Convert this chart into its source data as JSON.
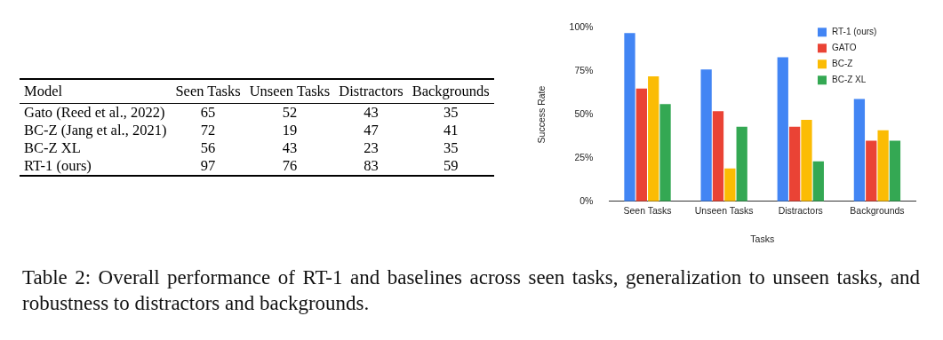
{
  "chart_data": [
    {
      "type": "other",
      "ylabel": "Model",
      "categories": [
        "Seen Tasks",
        "Unseen Tasks",
        "Distractors",
        "Backgrounds"
      ],
      "data_labels": true,
      "series": [
        {
          "name": "Gato (Reed et al., 2022)",
          "color": "#000000",
          "values": [
            65,
            52,
            43,
            35
          ]
        },
        {
          "name": "BC-Z (Jang et al., 2021)",
          "color": "#000000",
          "values": [
            72,
            19,
            47,
            41
          ]
        },
        {
          "name": "BC-Z XL",
          "color": "#000000",
          "values": [
            56,
            43,
            23,
            35
          ]
        },
        {
          "name": "RT-1 (ours)",
          "color": "#000000",
          "values": [
            97,
            76,
            83,
            59
          ]
        }
      ],
      "annotations": [
        "Table 2: Overall performance of RT-1 and baselines across seen tasks, generalization to unseen tasks, and robustness to distractors and backgrounds."
      ]
    },
    {
      "type": "bar",
      "xlabel": "Tasks",
      "ylabel": "Success Rate",
      "categories": [
        "Seen Tasks",
        "Unseen Tasks",
        "Distractors",
        "Backgrounds"
      ],
      "ylim": [
        0,
        100
      ],
      "yticks": [
        {
          "value": 0,
          "label": "0%"
        },
        {
          "value": 25,
          "label": "25%"
        },
        {
          "value": 50,
          "label": "50%"
        },
        {
          "value": 75,
          "label": "75%"
        },
        {
          "value": 100,
          "label": "100%"
        }
      ],
      "grid": false,
      "legend": "top right",
      "series": [
        {
          "name": "RT-1 (ours)",
          "color": "#4285f4",
          "values": [
            97,
            76,
            83,
            59
          ]
        },
        {
          "name": "GATO",
          "color": "#ea4335",
          "values": [
            65,
            52,
            43,
            35
          ]
        },
        {
          "name": "BC-Z",
          "color": "#fbbc04",
          "values": [
            72,
            19,
            47,
            41
          ]
        },
        {
          "name": "BC-Z XL",
          "color": "#34a853",
          "values": [
            56,
            43,
            23,
            35
          ]
        }
      ]
    }
  ]
}
